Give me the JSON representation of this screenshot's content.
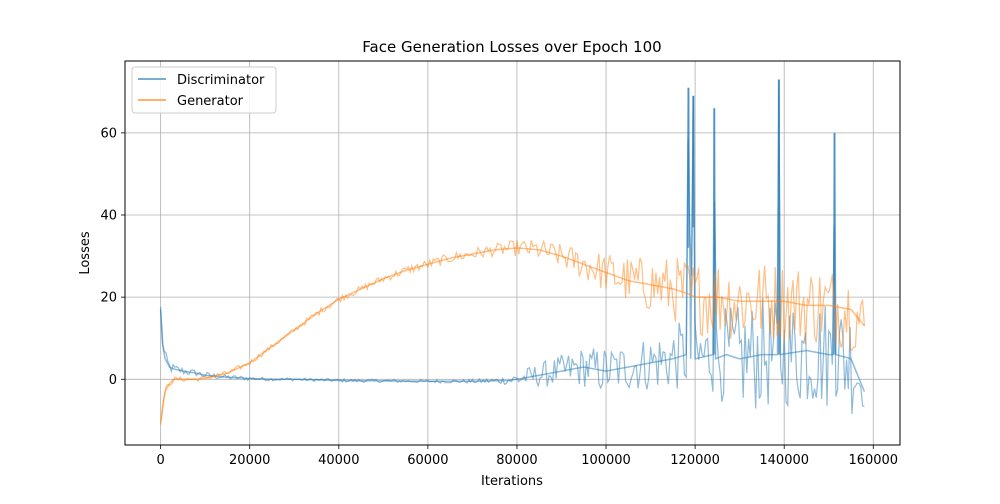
{
  "chart_data": {
    "type": "line",
    "title": "Face Generation Losses over Epoch 100",
    "xlabel": "Iterations",
    "ylabel": "Losses",
    "xlim": [
      -8000,
      166000
    ],
    "ylim": [
      -16,
      77.5
    ],
    "xticks": [
      0,
      20000,
      40000,
      60000,
      80000,
      100000,
      120000,
      140000,
      160000
    ],
    "yticks": [
      0,
      20,
      40,
      60
    ],
    "grid": true,
    "legend_position": "upper-left",
    "series": [
      {
        "name": "Discriminator",
        "color": "#1f77b4",
        "alpha": 0.5,
        "x": [
          0,
          500,
          1000,
          2000,
          3000,
          5000,
          8000,
          10000,
          15000,
          20000,
          25000,
          30000,
          40000,
          50000,
          60000,
          70000,
          78000,
          80000,
          85000,
          90000,
          95000,
          100000,
          105000,
          110000,
          115000,
          118000,
          118500,
          119000,
          119600,
          120000,
          124000,
          124300,
          124600,
          127000,
          130000,
          135000,
          138500,
          138800,
          139100,
          145000,
          150000,
          151000,
          151300,
          151600,
          155000,
          158000
        ],
        "values": [
          17,
          8,
          5,
          3,
          2.5,
          2,
          1.5,
          1,
          0.5,
          0.2,
          0,
          0,
          -0.3,
          -0.4,
          -0.5,
          -0.5,
          -0.3,
          0,
          1,
          2,
          3,
          2,
          3,
          4,
          5,
          6,
          71,
          5,
          69,
          5,
          6,
          66,
          5,
          6,
          5,
          6,
          6,
          73,
          6,
          7,
          6,
          6,
          60,
          6,
          5,
          -3
        ],
        "spread": [
          2,
          3,
          2,
          1.5,
          1.2,
          1,
          0.8,
          0.8,
          0.6,
          0.5,
          0.4,
          0.4,
          0.4,
          0.4,
          0.4,
          0.5,
          1,
          2,
          3,
          4,
          5,
          6,
          6,
          7,
          8,
          9,
          0,
          9,
          0,
          9,
          10,
          0,
          10,
          12,
          13,
          14,
          13,
          0,
          13,
          14,
          14,
          14,
          0,
          14,
          14,
          4
        ]
      },
      {
        "name": "Generator",
        "color": "#ff7f0e",
        "alpha": 0.5,
        "x": [
          0,
          500,
          1000,
          2000,
          3000,
          5000,
          8000,
          10000,
          15000,
          20000,
          25000,
          30000,
          35000,
          40000,
          45000,
          50000,
          55000,
          60000,
          65000,
          70000,
          75000,
          80000,
          85000,
          90000,
          95000,
          100000,
          105000,
          110000,
          115000,
          118000,
          120000,
          125000,
          130000,
          135000,
          140000,
          145000,
          150000,
          155000,
          158000
        ],
        "values": [
          -11,
          -6,
          -3,
          -1,
          0,
          0,
          0,
          0.3,
          1.5,
          4,
          8,
          12,
          16,
          19.5,
          22,
          24.5,
          26.5,
          28,
          29.5,
          30.5,
          31.5,
          32,
          31.5,
          30,
          28,
          26,
          24,
          23,
          22,
          21,
          20,
          20,
          19,
          19,
          19,
          18,
          18,
          17,
          13
        ],
        "spread": [
          1,
          1,
          1,
          0.8,
          0.6,
          0.6,
          0.6,
          0.6,
          0.6,
          0.6,
          0.6,
          0.6,
          0.8,
          0.8,
          0.8,
          1,
          1,
          1.2,
          1.2,
          1.5,
          1.5,
          2,
          2.5,
          3,
          4,
          5,
          6,
          7,
          8,
          9,
          9,
          10,
          10,
          10,
          10,
          10,
          10,
          10,
          8
        ]
      }
    ]
  }
}
